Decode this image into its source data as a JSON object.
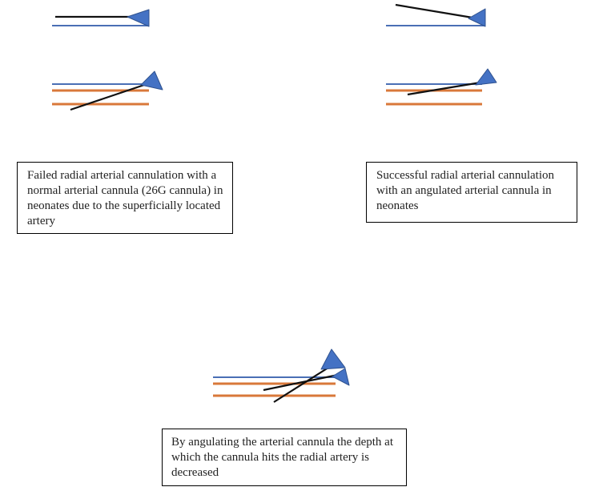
{
  "captions": {
    "failed": "Failed radial arterial cannulation with a normal arterial cannula (26G cannula) in neonates due to the superficially located artery",
    "successful": "Successful radial arterial cannulation with an angulated arterial cannula in neonates",
    "angulating": "By angulating the  arterial cannula the depth at which the cannula hits the radial artery is decreased"
  },
  "colors": {
    "skin_line": "#4a6fb5",
    "artery_wall": "#d9783a",
    "cannula": "#111111",
    "hub_fill": "#4472c4",
    "hub_stroke": "#2f528f"
  }
}
